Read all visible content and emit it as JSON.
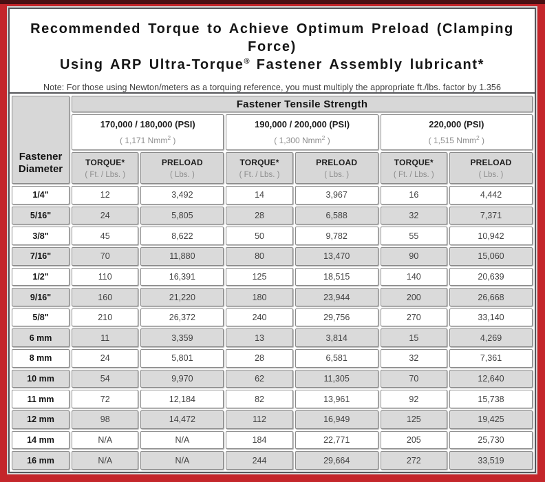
{
  "masthead": {
    "title_line1": "Recommended Torque to Achieve Optimum Preload (Clamping Force)",
    "title_line2_pre": "Using ARP Ultra-Torque",
    "title_line2_sup": "®",
    "title_line2_post": " Fastener Assembly lubricant*",
    "note": "Note: For those using Newton/meters as a torquing reference, you must multiply the appropriate ft./lbs. factor by 1.356"
  },
  "table": {
    "corner_header": "Fastener Diameter",
    "tensile_header": "Fastener Tensile Strength",
    "psi_groups": [
      {
        "psi": "170,000 / 180,000 (PSI)",
        "nmm_pre": "( 1,171 Nmm",
        "nmm_sup": "2",
        "nmm_post": " )"
      },
      {
        "psi": "190,000 / 200,000 (PSI)",
        "nmm_pre": "( 1,300 Nmm",
        "nmm_sup": "2",
        "nmm_post": " )"
      },
      {
        "psi": "220,000 (PSI)",
        "nmm_pre": "( 1,515 Nmm",
        "nmm_sup": "2",
        "nmm_post": " )"
      }
    ],
    "columns": [
      {
        "main": "TORQUE*",
        "sub": "( Ft. / Lbs. )"
      },
      {
        "main": "PRELOAD",
        "sub": "( Lbs. )"
      },
      {
        "main": "TORQUE*",
        "sub": "( Ft. / Lbs. )"
      },
      {
        "main": "PRELOAD",
        "sub": "( Lbs. )"
      },
      {
        "main": "TORQUE*",
        "sub": "( Ft. / Lbs. )"
      },
      {
        "main": "PRELOAD",
        "sub": "( Lbs. )"
      }
    ],
    "rows": [
      {
        "d": "1/4\"",
        "c": [
          "12",
          "3,492",
          "14",
          "3,967",
          "16",
          "4,442"
        ]
      },
      {
        "d": "5/16\"",
        "c": [
          "24",
          "5,805",
          "28",
          "6,588",
          "32",
          "7,371"
        ]
      },
      {
        "d": "3/8\"",
        "c": [
          "45",
          "8,622",
          "50",
          "9,782",
          "55",
          "10,942"
        ]
      },
      {
        "d": "7/16\"",
        "c": [
          "70",
          "11,880",
          "80",
          "13,470",
          "90",
          "15,060"
        ]
      },
      {
        "d": "1/2\"",
        "c": [
          "110",
          "16,391",
          "125",
          "18,515",
          "140",
          "20,639"
        ]
      },
      {
        "d": "9/16\"",
        "c": [
          "160",
          "21,220",
          "180",
          "23,944",
          "200",
          "26,668"
        ]
      },
      {
        "d": "5/8\"",
        "c": [
          "210",
          "26,372",
          "240",
          "29,756",
          "270",
          "33,140"
        ]
      },
      {
        "d": "6 mm",
        "c": [
          "11",
          "3,359",
          "13",
          "3,814",
          "15",
          "4,269"
        ]
      },
      {
        "d": "8 mm",
        "c": [
          "24",
          "5,801",
          "28",
          "6,581",
          "32",
          "7,361"
        ]
      },
      {
        "d": "10 mm",
        "c": [
          "54",
          "9,970",
          "62",
          "11,305",
          "70",
          "12,640"
        ]
      },
      {
        "d": "11 mm",
        "c": [
          "72",
          "12,184",
          "82",
          "13,961",
          "92",
          "15,738"
        ]
      },
      {
        "d": "12 mm",
        "c": [
          "98",
          "14,472",
          "112",
          "16,949",
          "125",
          "19,425"
        ]
      },
      {
        "d": "14 mm",
        "c": [
          "N/A",
          "N/A",
          "184",
          "22,771",
          "205",
          "25,730"
        ]
      },
      {
        "d": "16 mm",
        "c": [
          "N/A",
          "N/A",
          "244",
          "29,664",
          "272",
          "33,519"
        ]
      }
    ]
  },
  "colors": {
    "frame_red": "#c4262b",
    "frame_dark_strip": "#4a1013",
    "box_border": "#55565a",
    "header_gray": "#d7d7d7",
    "stripe_gray": "#dadada",
    "sub_text_gray": "#8d8d8d"
  }
}
